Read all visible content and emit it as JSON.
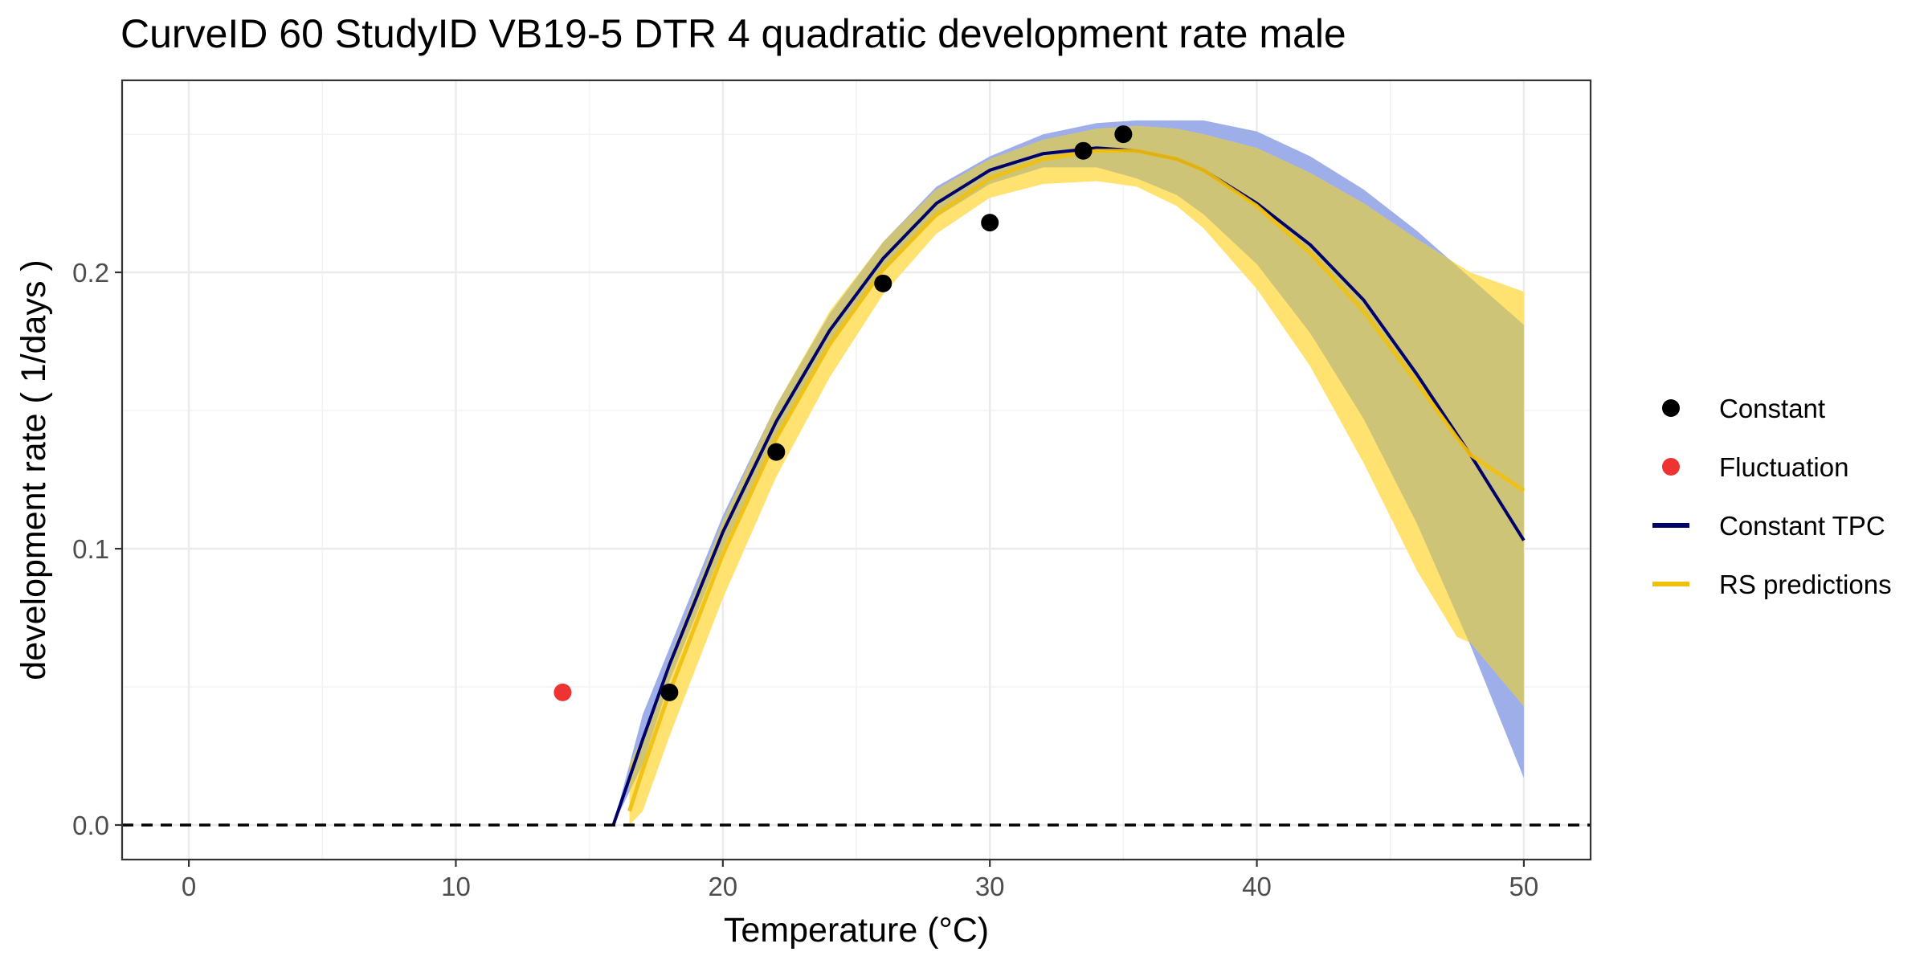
{
  "chart_data": {
    "type": "line",
    "title": "CurveID 60 StudyID VB19-5 DTR 4 quadratic development rate male",
    "xlabel": "Temperature (°C)",
    "ylabel": "development rate ( 1/days )",
    "xlim": [
      -2.5,
      52.5
    ],
    "ylim": [
      -0.0125,
      0.2695
    ],
    "x_ticks": [
      0,
      10,
      20,
      30,
      40,
      50
    ],
    "x_tick_labels": [
      "0",
      "10",
      "20",
      "30",
      "40",
      "50"
    ],
    "y_ticks": [
      0.0,
      0.1,
      0.2
    ],
    "y_tick_labels": [
      "0.0",
      "0.1",
      "0.2"
    ],
    "grid": true,
    "legend_position": "right",
    "reference_line": {
      "y": 0,
      "style": "dashed",
      "color": "#000000"
    },
    "colors": {
      "constant": "#000000",
      "fluctuation": "#ee3333",
      "constant_tpc": "#00006b",
      "rs_predictions": "#f0c010",
      "constant_band": "#9eaee8",
      "rs_band": "#ffe270",
      "band_overlap": "#cec478"
    },
    "legend": [
      {
        "label": "Constant",
        "kind": "point",
        "color": "#000000"
      },
      {
        "label": "Fluctuation",
        "kind": "point",
        "color": "#ee3333"
      },
      {
        "label": "Constant TPC",
        "kind": "line",
        "color": "#00006b"
      },
      {
        "label": "RS predictions",
        "kind": "line",
        "color": "#f0c010"
      }
    ],
    "series": [
      {
        "name": "Constant",
        "kind": "points",
        "x": [
          18,
          22,
          26,
          30,
          33.5,
          35
        ],
        "y": [
          0.048,
          0.135,
          0.196,
          0.218,
          0.244,
          0.25
        ]
      },
      {
        "name": "Fluctuation",
        "kind": "points",
        "x": [
          14
        ],
        "y": [
          0.048
        ]
      },
      {
        "name": "Constant TPC",
        "kind": "line",
        "x": [
          15.9,
          17,
          18,
          20,
          22,
          24,
          26,
          28,
          30,
          32,
          34,
          35.5,
          37,
          38,
          40,
          42,
          44,
          46,
          48,
          50
        ],
        "y": [
          0.0,
          0.031,
          0.058,
          0.106,
          0.146,
          0.179,
          0.205,
          0.225,
          0.237,
          0.243,
          0.245,
          0.244,
          0.241,
          0.237,
          0.225,
          0.21,
          0.19,
          0.163,
          0.134,
          0.103
        ],
        "band_lower": [
          0.0,
          0.022,
          0.052,
          0.1,
          0.14,
          0.174,
          0.2,
          0.22,
          0.232,
          0.238,
          0.238,
          0.234,
          0.228,
          0.221,
          0.203,
          0.178,
          0.147,
          0.109,
          0.065,
          0.017
        ],
        "band_upper": [
          0.0,
          0.04,
          0.064,
          0.112,
          0.152,
          0.185,
          0.211,
          0.231,
          0.242,
          0.25,
          0.254,
          0.255,
          0.255,
          0.255,
          0.251,
          0.242,
          0.23,
          0.215,
          0.198,
          0.181
        ]
      },
      {
        "name": "RS predictions",
        "kind": "line",
        "x": [
          16.5,
          17,
          18,
          20,
          22,
          24,
          26,
          28,
          30,
          32,
          34,
          35.5,
          37,
          38,
          40,
          42,
          44,
          46,
          47.5,
          48,
          50
        ],
        "y": [
          0.005,
          0.02,
          0.048,
          0.098,
          0.14,
          0.174,
          0.201,
          0.221,
          0.234,
          0.241,
          0.244,
          0.244,
          0.241,
          0.237,
          0.224,
          0.207,
          0.186,
          0.16,
          0.14,
          0.134,
          0.121
        ],
        "band_lower": [
          0.0,
          0.005,
          0.032,
          0.082,
          0.126,
          0.162,
          0.192,
          0.214,
          0.227,
          0.232,
          0.233,
          0.231,
          0.224,
          0.216,
          0.194,
          0.166,
          0.131,
          0.092,
          0.068,
          0.066,
          0.043
        ],
        "band_upper": [
          0.022,
          0.032,
          0.06,
          0.11,
          0.152,
          0.186,
          0.211,
          0.23,
          0.241,
          0.248,
          0.252,
          0.253,
          0.252,
          0.25,
          0.245,
          0.236,
          0.225,
          0.212,
          0.203,
          0.2,
          0.193
        ]
      }
    ]
  }
}
